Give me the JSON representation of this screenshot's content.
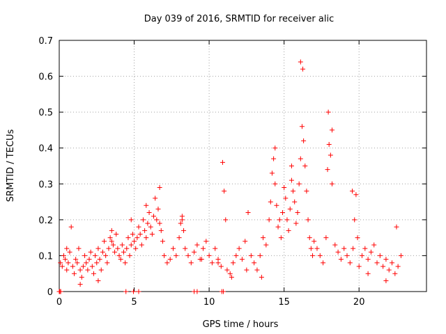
{
  "chart_data": {
    "type": "scatter",
    "title": "Day 039 of 2016, SRMTID for receiver alic",
    "xlabel": "GPS time / hours",
    "ylabel": "SRMTID / TECUs",
    "xlim": [
      0,
      24.5
    ],
    "ylim": [
      0,
      0.7
    ],
    "xticks": [
      0,
      5,
      10,
      15,
      20
    ],
    "xtick_labels": [
      "0",
      "5",
      "10",
      "15",
      "20"
    ],
    "yticks": [
      0,
      0.1,
      0.2,
      0.3,
      0.4,
      0.5,
      0.6,
      0.7
    ],
    "ytick_labels": [
      "0",
      "0.1",
      "0.2",
      "0.3",
      "0.4",
      "0.5",
      "0.6",
      "0.7"
    ],
    "grid": true,
    "marker": "+",
    "series": [
      {
        "name": "alic",
        "color": "#ff0000",
        "x": [
          0.02,
          0.08,
          0.2,
          0.3,
          0.4,
          0.5,
          0.6,
          0.7,
          0.8,
          0.9,
          1.0,
          1.1,
          1.2,
          1.3,
          1.4,
          1.5,
          1.6,
          1.7,
          1.8,
          1.9,
          2.0,
          2.1,
          2.2,
          2.3,
          2.4,
          2.5,
          2.6,
          2.7,
          2.8,
          2.9,
          3.0,
          3.1,
          3.2,
          3.3,
          3.4,
          3.5,
          3.6,
          3.7,
          3.8,
          3.9,
          4.0,
          4.1,
          4.2,
          4.3,
          4.4,
          4.5,
          4.6,
          4.7,
          4.8,
          4.9,
          5.0,
          5.1,
          5.2,
          5.3,
          5.4,
          5.5,
          5.6,
          5.7,
          5.8,
          5.9,
          6.0,
          6.1,
          6.2,
          6.3,
          6.4,
          6.5,
          6.6,
          6.7,
          6.8,
          6.9,
          7.0,
          7.2,
          7.4,
          7.6,
          7.8,
          8.0,
          8.1,
          8.2,
          8.3,
          8.4,
          8.6,
          8.8,
          9.0,
          9.2,
          9.4,
          9.6,
          9.8,
          10.0,
          10.2,
          10.4,
          10.6,
          10.8,
          10.9,
          11.0,
          11.1,
          11.2,
          11.4,
          11.6,
          11.8,
          12.0,
          12.2,
          12.4,
          12.6,
          12.8,
          13.0,
          13.2,
          13.4,
          13.6,
          13.8,
          14.0,
          14.1,
          14.2,
          14.3,
          14.4,
          14.5,
          14.6,
          14.7,
          14.8,
          14.9,
          15.0,
          15.1,
          15.2,
          15.3,
          15.4,
          15.5,
          15.6,
          15.7,
          15.8,
          15.9,
          16.0,
          16.1,
          16.2,
          16.3,
          16.4,
          16.5,
          16.6,
          16.7,
          16.8,
          16.9,
          17.0,
          17.2,
          17.4,
          17.6,
          17.8,
          17.9,
          18.0,
          18.1,
          18.2,
          18.4,
          18.6,
          18.8,
          19.0,
          19.2,
          19.4,
          19.6,
          19.7,
          19.8,
          19.9,
          20.0,
          20.2,
          20.4,
          20.6,
          20.8,
          21.0,
          21.2,
          21.4,
          21.6,
          21.8,
          22.0,
          22.2,
          22.4,
          22.6,
          22.8,
          0.04,
          0.5,
          1.4,
          2.6,
          3.5,
          4.8,
          5.8,
          6.7,
          8.2,
          9.5,
          10.6,
          11.5,
          12.5,
          13.5,
          14.4,
          15.5,
          16.1,
          16.25,
          17.95,
          18.2,
          19.55,
          20.6,
          21.8,
          22.5,
          0.0,
          0.1,
          4.45,
          4.95,
          5.3,
          9.0,
          9.2,
          10.85,
          10.95
        ],
        "y": [
          0.0,
          0.08,
          0.07,
          0.1,
          0.09,
          0.06,
          0.08,
          0.11,
          0.18,
          0.07,
          0.05,
          0.09,
          0.08,
          0.12,
          0.06,
          0.04,
          0.07,
          0.1,
          0.08,
          0.06,
          0.09,
          0.11,
          0.07,
          0.05,
          0.1,
          0.08,
          0.12,
          0.09,
          0.06,
          0.11,
          0.14,
          0.1,
          0.08,
          0.12,
          0.15,
          0.17,
          0.13,
          0.11,
          0.16,
          0.12,
          0.1,
          0.09,
          0.13,
          0.11,
          0.08,
          0.12,
          0.15,
          0.1,
          0.13,
          0.16,
          0.14,
          0.12,
          0.15,
          0.18,
          0.16,
          0.13,
          0.2,
          0.17,
          0.15,
          0.19,
          0.22,
          0.18,
          0.16,
          0.21,
          0.26,
          0.2,
          0.23,
          0.19,
          0.17,
          0.14,
          0.1,
          0.08,
          0.09,
          0.12,
          0.1,
          0.15,
          0.19,
          0.21,
          0.17,
          0.12,
          0.1,
          0.08,
          0.11,
          0.13,
          0.09,
          0.12,
          0.14,
          0.1,
          0.08,
          0.12,
          0.09,
          0.07,
          0.36,
          0.28,
          0.2,
          0.06,
          0.05,
          0.08,
          0.1,
          0.12,
          0.09,
          0.14,
          0.22,
          0.1,
          0.08,
          0.06,
          0.1,
          0.15,
          0.13,
          0.2,
          0.25,
          0.33,
          0.37,
          0.3,
          0.24,
          0.18,
          0.2,
          0.15,
          0.22,
          0.29,
          0.26,
          0.2,
          0.17,
          0.23,
          0.31,
          0.28,
          0.25,
          0.19,
          0.22,
          0.3,
          0.37,
          0.46,
          0.42,
          0.35,
          0.28,
          0.2,
          0.15,
          0.12,
          0.1,
          0.14,
          0.12,
          0.1,
          0.08,
          0.15,
          0.34,
          0.41,
          0.38,
          0.3,
          0.13,
          0.11,
          0.09,
          0.12,
          0.1,
          0.08,
          0.12,
          0.2,
          0.27,
          0.15,
          0.07,
          0.1,
          0.12,
          0.09,
          0.11,
          0.13,
          0.08,
          0.1,
          0.07,
          0.09,
          0.06,
          0.08,
          0.05,
          0.07,
          0.1,
          0.0,
          0.12,
          0.02,
          0.03,
          0.14,
          0.2,
          0.24,
          0.29,
          0.2,
          0.09,
          0.08,
          0.04,
          0.06,
          0.04,
          0.4,
          0.35,
          0.64,
          0.62,
          0.5,
          0.45,
          0.28,
          0.05,
          0.03,
          0.18,
          0.0,
          0.0,
          0.0,
          0.0,
          0.0,
          0.0,
          0.0,
          0.0,
          0.0
        ]
      }
    ]
  }
}
